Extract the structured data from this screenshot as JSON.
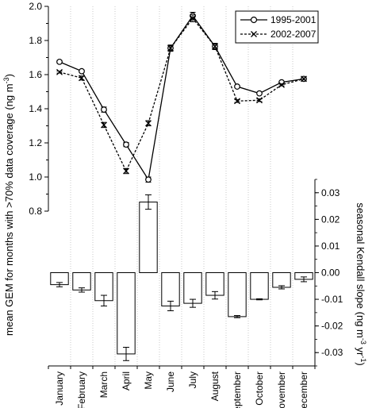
{
  "chart_data": {
    "type": "line",
    "categories": [
      "January",
      "February",
      "March",
      "April",
      "May",
      "June",
      "July",
      "August",
      "September",
      "October",
      "November",
      "December"
    ],
    "upper_panel": {
      "ylabel": "mean GEM for months with >70% data coverage (ng m",
      "ylabel_unit_sup": "-3",
      "ylabel_close": ")",
      "ylim": [
        0.8,
        2.0
      ],
      "yticks": [
        0.8,
        1.0,
        1.2,
        1.4,
        1.6,
        1.8,
        2.0
      ],
      "ytick_labels": [
        "0.8",
        "1.0",
        "1.2",
        "1.4",
        "1.6",
        "1.8",
        "2.0"
      ],
      "legend_position": "top-right",
      "series": [
        {
          "name": "1995-2001",
          "marker": "circle",
          "line": "solid",
          "values": [
            1.675,
            1.62,
            1.395,
            1.19,
            0.985,
            1.755,
            1.945,
            1.765,
            1.53,
            1.49,
            1.555,
            1.575
          ],
          "errors": [
            0.008,
            0.008,
            0.015,
            0.012,
            0.015,
            0.018,
            0.02,
            0.018,
            0.006,
            0.006,
            0.006,
            0.006
          ]
        },
        {
          "name": "2002-2007",
          "marker": "x",
          "line": "dashed",
          "values": [
            1.615,
            1.58,
            1.305,
            1.035,
            1.315,
            1.755,
            1.93,
            1.765,
            1.445,
            1.45,
            1.54,
            1.575
          ],
          "errors": [
            0.006,
            0.012,
            0.015,
            0.015,
            0.015,
            0.018,
            0.02,
            0.018,
            0.008,
            0.008,
            0.006,
            0.006
          ]
        }
      ]
    },
    "lower_panel": {
      "type": "bar",
      "ylabel": "seasonal Kendall slope (ng m",
      "ylabel_sup1": "-3",
      "ylabel_mid": " yr",
      "ylabel_sup2": "-1",
      "ylabel_close": ")",
      "ylim": [
        -0.035,
        0.035
      ],
      "yticks": [
        -0.03,
        -0.02,
        -0.01,
        0.0,
        0.01,
        0.02,
        0.03
      ],
      "ytick_labels": [
        "-0.03",
        "-0.02",
        "-0.01",
        "0.00",
        "0.01",
        "0.02",
        "0.03"
      ],
      "values": [
        -0.0045,
        -0.0065,
        -0.0105,
        -0.0305,
        0.0265,
        -0.0125,
        -0.0115,
        -0.0085,
        -0.0165,
        -0.01,
        -0.0055,
        -0.0025
      ],
      "errors": [
        0.0008,
        0.0008,
        0.002,
        0.0025,
        0.0027,
        0.0018,
        0.0015,
        0.0014,
        0.0004,
        0.0002,
        0.0006,
        0.0009
      ]
    },
    "grid": "vertical dotted lines at month boundaries"
  }
}
